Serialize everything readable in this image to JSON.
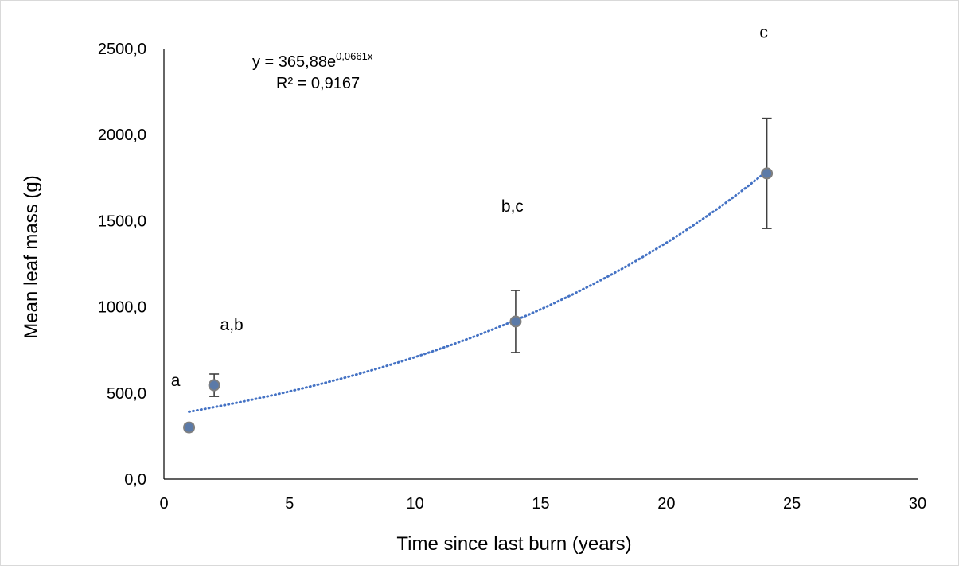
{
  "chart_data": {
    "type": "scatter",
    "title": "",
    "xlabel": "Time since last burn (years)",
    "ylabel": "Mean leaf mass (g)",
    "xlim": [
      0,
      30
    ],
    "ylim": [
      0,
      2500
    ],
    "x_ticks": [
      0,
      5,
      10,
      15,
      20,
      25,
      30
    ],
    "y_ticks": [
      0,
      500,
      1000,
      1500,
      2000,
      2500
    ],
    "x_tick_labels": [
      "0",
      "5",
      "10",
      "15",
      "20",
      "25",
      "30"
    ],
    "y_tick_labels": [
      "0,0",
      "500,0",
      "1000,0",
      "1500,0",
      "2000,0",
      "2500,0"
    ],
    "grid": false,
    "legend": "none",
    "points": [
      {
        "x": 1,
        "y": 300,
        "err_low": 280,
        "err_high": 320,
        "label": "a"
      },
      {
        "x": 2,
        "y": 545,
        "err_low": 480,
        "err_high": 610,
        "label": "a,b"
      },
      {
        "x": 14,
        "y": 915,
        "err_low": 735,
        "err_high": 1095,
        "label": "b,c"
      },
      {
        "x": 24,
        "y": 1775,
        "err_low": 1455,
        "err_high": 2095,
        "label": "c"
      }
    ],
    "trendline": {
      "type": "exponential",
      "a": 365.88,
      "b": 0.0661,
      "x_range": [
        1,
        24
      ],
      "equation_prefix": "y = 365,88e",
      "equation_exponent": "0,0661x",
      "r2_text": "R² = 0,9167"
    },
    "colors": {
      "marker_fill": "#5b7aa8",
      "marker_stroke": "#7f7f7f",
      "trendline": "#4472c4",
      "errorbar": "#404040",
      "axis": "#000000"
    }
  }
}
